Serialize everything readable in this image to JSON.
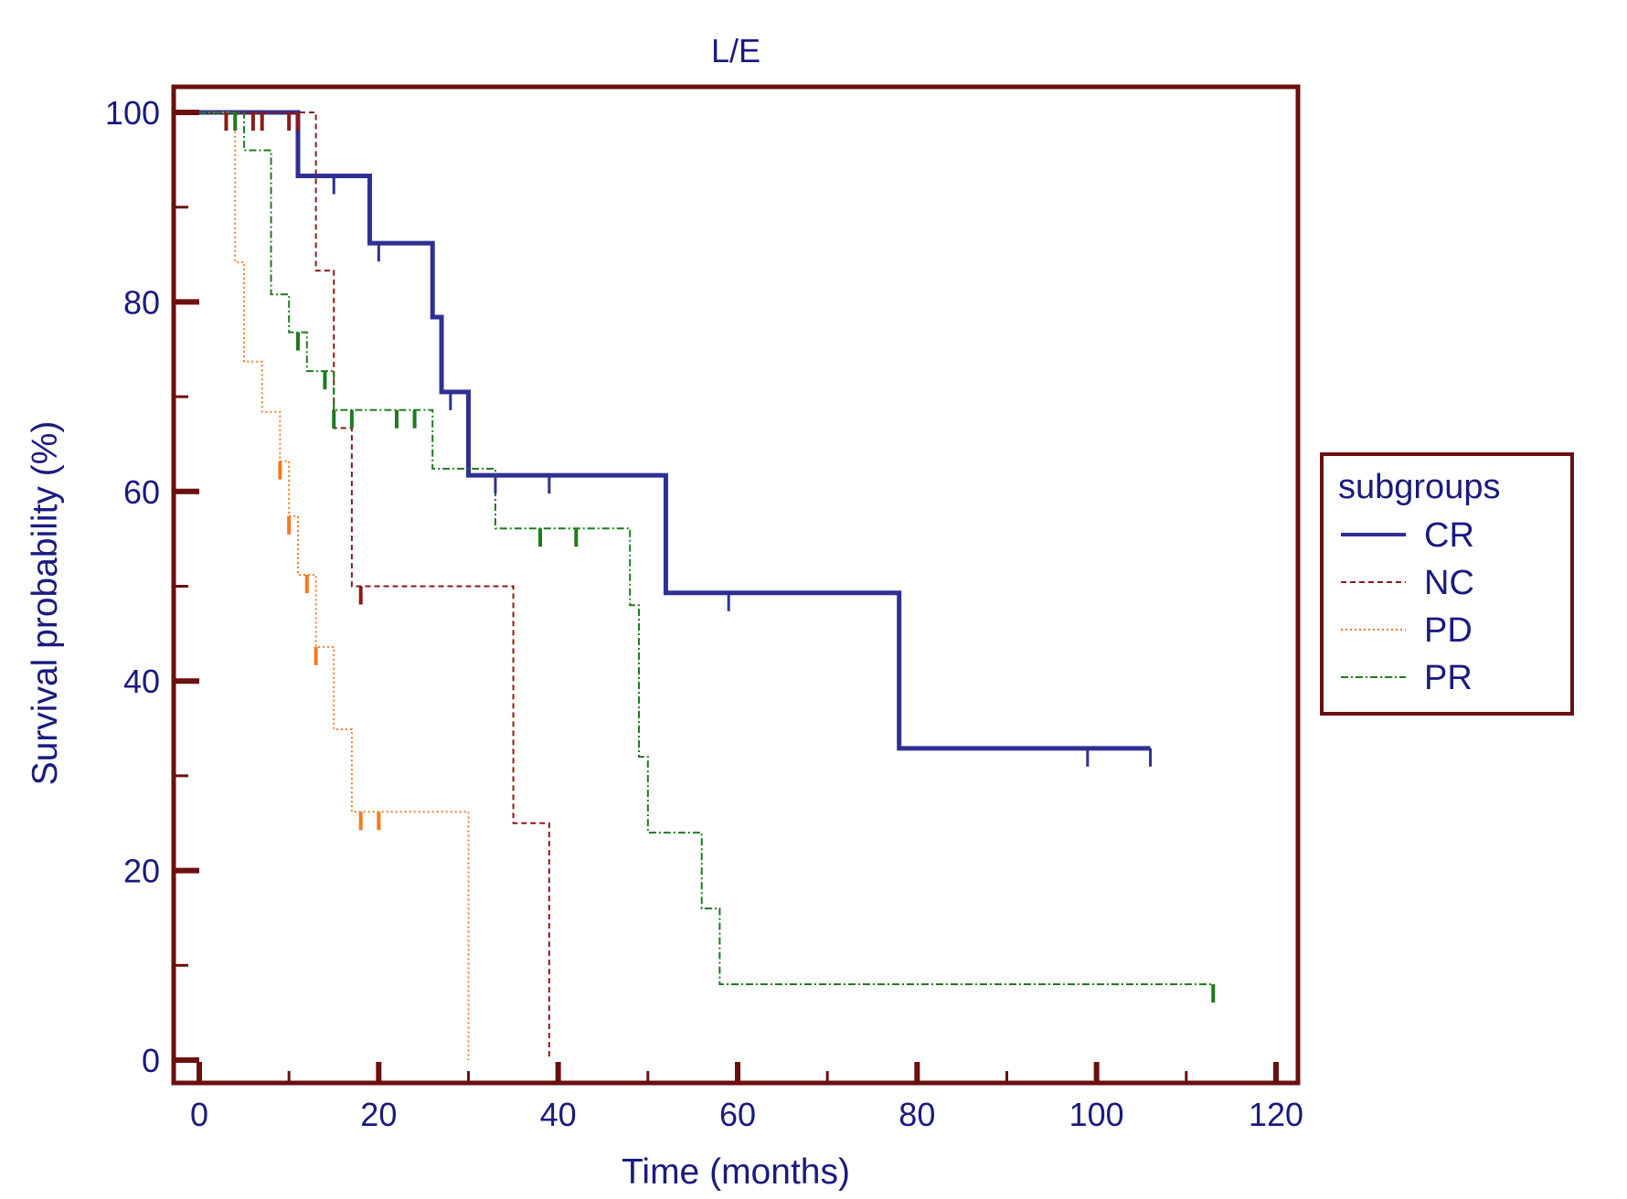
{
  "chart_data": {
    "type": "line",
    "subtype": "kaplan-meier-step",
    "title": "L/E",
    "xlabel": "Time (months)",
    "ylabel": "Survival probability (%)",
    "xlim": [
      0,
      120
    ],
    "ylim": [
      0,
      100
    ],
    "xticks": [
      0,
      20,
      40,
      60,
      80,
      100,
      120
    ],
    "yticks": [
      0,
      20,
      40,
      60,
      80,
      100
    ],
    "grid": false,
    "legend": {
      "title": "subgroups",
      "position": "right"
    },
    "colors": {
      "frame": "#6b0f0f",
      "text": "#1a1a80"
    },
    "series": [
      {
        "name": "CR",
        "color": "#2e3192",
        "dash": "solid",
        "steps": [
          [
            0,
            100
          ],
          [
            11,
            93.3
          ],
          [
            19,
            86.2
          ],
          [
            26,
            78.4
          ],
          [
            27,
            70.5
          ],
          [
            30,
            61.7
          ],
          [
            52,
            49.3
          ],
          [
            78,
            32.9
          ],
          [
            106,
            32.9
          ]
        ],
        "censored": [
          [
            15,
            93.3
          ],
          [
            20,
            86.2
          ],
          [
            28,
            70.5
          ],
          [
            33,
            61.7
          ],
          [
            39,
            61.7
          ],
          [
            59,
            49.3
          ],
          [
            99,
            32.9
          ],
          [
            106,
            32.9
          ]
        ]
      },
      {
        "name": "NC",
        "color": "#8b1a1a",
        "dash": "dashed",
        "steps": [
          [
            0,
            100
          ],
          [
            13,
            83.3
          ],
          [
            15,
            66.7
          ],
          [
            17,
            50.0
          ],
          [
            35,
            25.0
          ],
          [
            39,
            0
          ],
          [
            39,
            0
          ]
        ],
        "censored": [
          [
            3,
            100
          ],
          [
            6,
            100
          ],
          [
            7,
            100
          ],
          [
            10,
            100
          ],
          [
            11,
            100
          ],
          [
            18,
            50.0
          ]
        ]
      },
      {
        "name": "PD",
        "color": "#f47a20",
        "dash": "dotted",
        "steps": [
          [
            0,
            100
          ],
          [
            4,
            84.2
          ],
          [
            5,
            73.7
          ],
          [
            7,
            68.4
          ],
          [
            9,
            63.2
          ],
          [
            10,
            57.4
          ],
          [
            11,
            51.2
          ],
          [
            13,
            43.6
          ],
          [
            15,
            34.9
          ],
          [
            17,
            26.2
          ],
          [
            30,
            0
          ],
          [
            30,
            0
          ]
        ],
        "censored": [
          [
            9,
            63.2
          ],
          [
            10,
            57.4
          ],
          [
            12,
            51.2
          ],
          [
            13,
            43.6
          ],
          [
            18,
            26.2
          ],
          [
            20,
            26.2
          ]
        ]
      },
      {
        "name": "PR",
        "color": "#1f7a1f",
        "dash": "dashdot",
        "steps": [
          [
            0,
            100
          ],
          [
            5,
            96.0
          ],
          [
            8,
            80.8
          ],
          [
            10,
            76.8
          ],
          [
            12,
            72.7
          ],
          [
            15,
            68.6
          ],
          [
            26,
            62.4
          ],
          [
            33,
            56.1
          ],
          [
            48,
            48.0
          ],
          [
            49,
            32.0
          ],
          [
            50,
            24.0
          ],
          [
            56,
            16.0
          ],
          [
            58,
            8.0
          ],
          [
            113,
            8.0
          ]
        ],
        "censored": [
          [
            4,
            100
          ],
          [
            11,
            76.8
          ],
          [
            14,
            72.7
          ],
          [
            15,
            68.6
          ],
          [
            17,
            68.6
          ],
          [
            22,
            68.6
          ],
          [
            24,
            68.6
          ],
          [
            38,
            56.1
          ],
          [
            42,
            56.1
          ],
          [
            113,
            8.0
          ]
        ]
      }
    ]
  }
}
